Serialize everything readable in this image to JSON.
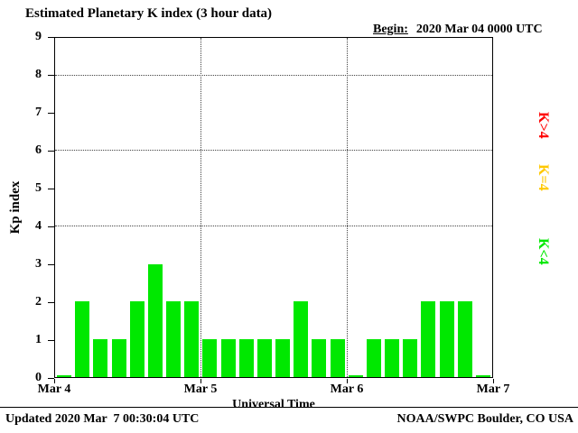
{
  "header": {
    "title": "Estimated Planetary K index (3 hour data)",
    "begin_label": "Begin:",
    "begin_value": "2020 Mar 04 0000 UTC"
  },
  "chart_data": {
    "type": "bar",
    "title": "Estimated Planetary K index (3 hour data)",
    "begin": "2020 Mar 04 0000 UTC",
    "xlabel": "Universal Time",
    "ylabel": "Kp index",
    "ylim": [
      0,
      9
    ],
    "yticks": [
      0,
      1,
      2,
      3,
      4,
      5,
      6,
      7,
      8,
      9
    ],
    "x_day_labels": [
      "Mar 4",
      "Mar 5",
      "Mar 6",
      "Mar 7"
    ],
    "interval_hours": 3,
    "values": [
      0,
      2,
      1,
      1,
      2,
      3,
      2,
      2,
      1,
      1,
      1,
      1,
      1,
      2,
      1,
      1,
      0,
      1,
      1,
      1,
      2,
      2,
      2,
      0
    ],
    "colors": {
      "below4": "#00e800",
      "equal4": "#ffc800",
      "above4": "#ff0000"
    },
    "gridlines_y": [
      4,
      6,
      8
    ],
    "grid": "dotted",
    "legend_position": "right",
    "legend": [
      {
        "label": "K>4",
        "color": "#ff0000"
      },
      {
        "label": "K=4",
        "color": "#ffc800"
      },
      {
        "label": "K<4",
        "color": "#00e800"
      }
    ]
  },
  "footer": {
    "updated": "Updated 2020 Mar  7 00:30:04 UTC",
    "credit": "NOAA/SWPC Boulder, CO USA"
  }
}
